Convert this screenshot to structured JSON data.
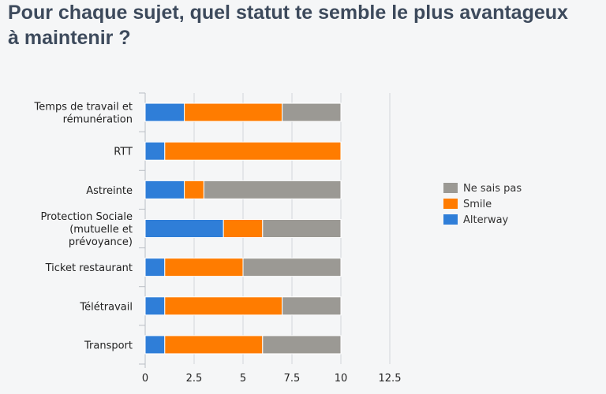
{
  "title": "Pour chaque sujet, quel statut te semble le plus avantageux\n à maintenir ?",
  "colors": {
    "alterway": "#2f7ed8",
    "smile": "#ff7c00",
    "ne_sais_pas": "#9b9994",
    "grid": "#d2d6db",
    "axis": "#b9bec4"
  },
  "chart_data": {
    "type": "bar",
    "orientation": "horizontal",
    "stacked": true,
    "title": "Pour chaque sujet, quel statut te semble le plus avantageux à maintenir ?",
    "categories": [
      "Temps de travail et\nrémunération",
      "RTT",
      "Astreinte",
      "Protection Sociale\n(mutuelle et\nprévoyance)",
      "Ticket restaurant",
      "Télétravail",
      "Transport"
    ],
    "series": [
      {
        "name": "Alterway",
        "color": "#2f7ed8",
        "values": [
          2,
          1,
          2,
          4,
          1,
          1,
          1
        ]
      },
      {
        "name": "Smile",
        "color": "#ff7c00",
        "values": [
          5,
          9,
          1,
          2,
          4,
          6,
          5
        ]
      },
      {
        "name": "Ne sais pas",
        "color": "#9b9994",
        "values": [
          3,
          0,
          7,
          4,
          5,
          3,
          4
        ]
      }
    ],
    "xlim": [
      0,
      12.5
    ],
    "xticks": [
      0,
      2.5,
      5,
      7.5,
      10,
      12.5
    ],
    "xtick_labels": [
      "0",
      "2.5",
      "5",
      "7.5",
      "10",
      "12.5"
    ],
    "legend": {
      "position": "right",
      "order": [
        "Ne sais pas",
        "Smile",
        "Alterway"
      ]
    },
    "grid": true
  }
}
